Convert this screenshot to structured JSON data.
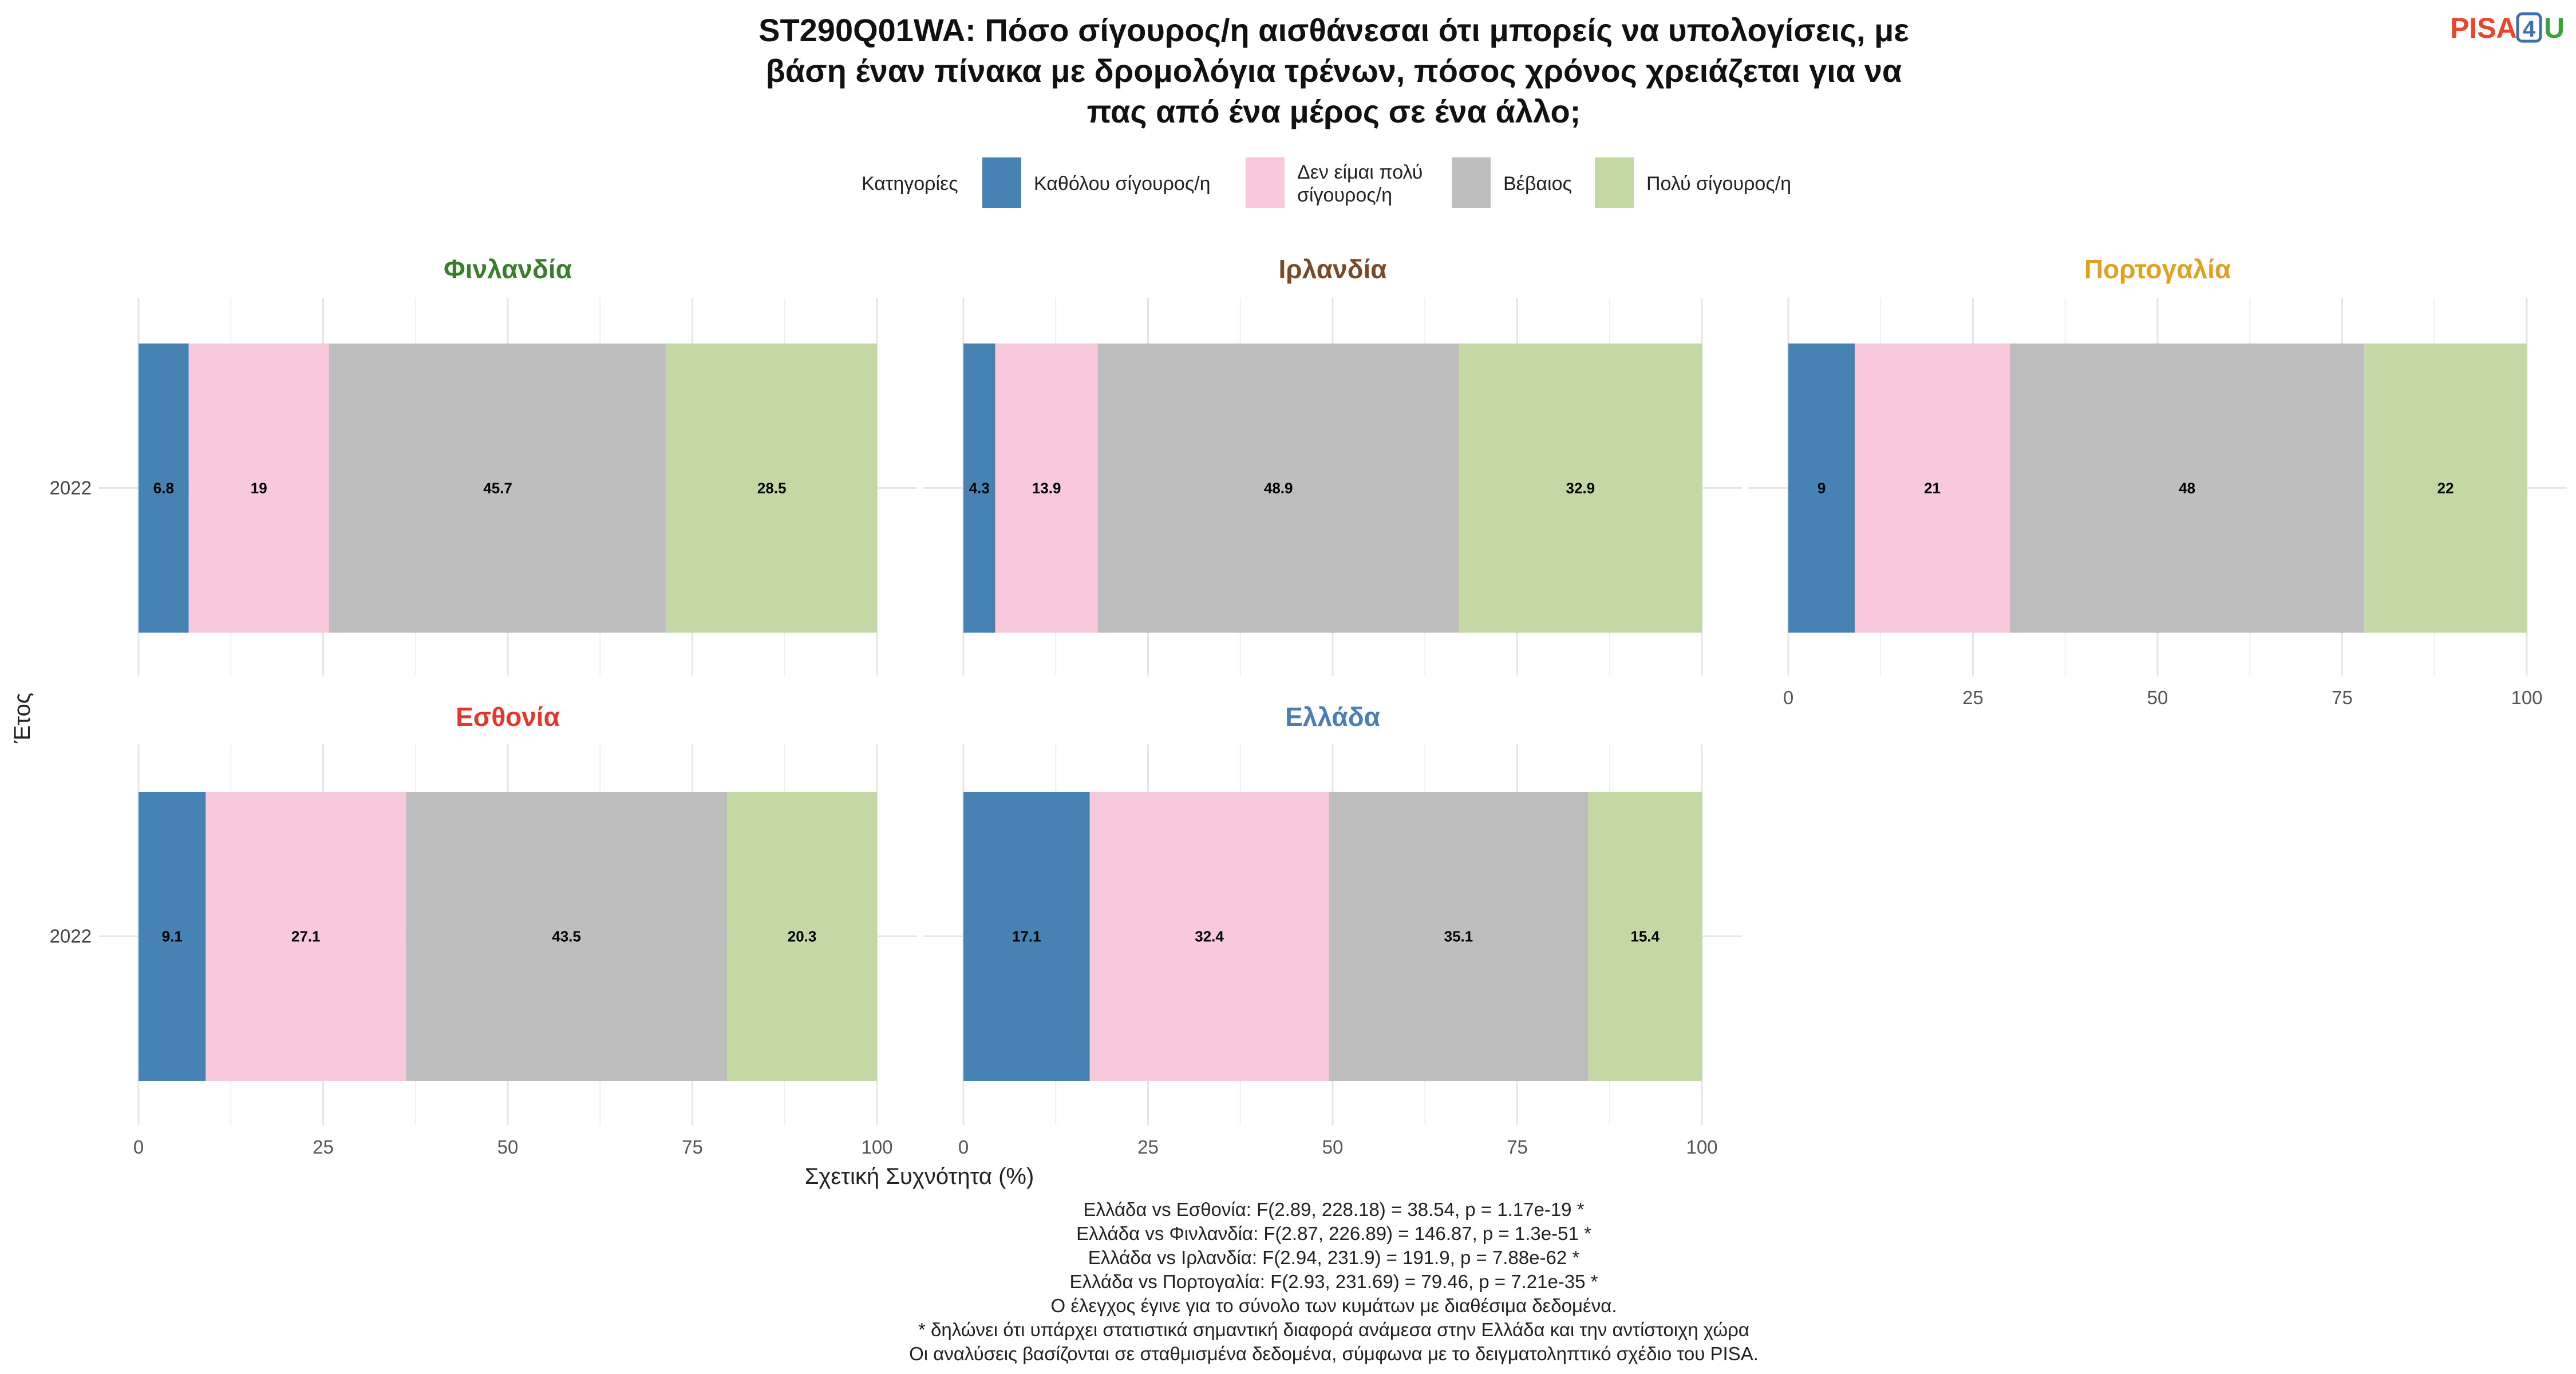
{
  "title_lines": [
    "ST290Q01WA: Πόσο σίγουρος/η αισθάνεσαι ότι μπορείς να υπολογίσεις, με",
    "βάση έναν πίνακα με δρομολόγια τρένων, πόσος χρόνος χρειάζεται για να",
    "πας από ένα μέρος σε ένα άλλο;"
  ],
  "logo": {
    "part1": "PISA",
    "part2": "4",
    "part3": "U",
    "colors": {
      "part1": "#e8452c",
      "part2": "#3d6fb0",
      "part3": "#3ba13b"
    }
  },
  "legend": {
    "title": "Κατηγορίες",
    "items": [
      {
        "lines": [
          "Καθόλου σίγουρος/η"
        ],
        "color": "#4682B4"
      },
      {
        "lines": [
          "Δεν είμαι πολύ",
          "σίγουρος/η"
        ],
        "color": "#F8C8DC"
      },
      {
        "lines": [
          "Βέβαιος"
        ],
        "color": "#BEBEBE"
      },
      {
        "lines": [
          "Πολύ σίγουρος/η"
        ],
        "color": "#C3D8A5"
      }
    ]
  },
  "chart_data": {
    "type": "bar",
    "orientation": "horizontal-stacked",
    "xlabel": "Σχετική Συχνότητα (%)",
    "ylabel": "Έτος",
    "xlim": [
      0,
      100
    ],
    "xticks": [
      0,
      25,
      50,
      75,
      100
    ],
    "categories": [
      "Καθόλου σίγουρος/η",
      "Δεν είμαι πολύ σίγουρος/η",
      "Βέβαιος",
      "Πολύ σίγουρος/η"
    ],
    "panels": [
      {
        "country": "Φινλανδία",
        "color": "#3a7d2c",
        "year": "2022",
        "values": [
          6.8,
          19,
          45.7,
          28.5
        ],
        "labels": [
          "6.8",
          "19",
          "45.7",
          "28.5"
        ],
        "show_x_axis": false
      },
      {
        "country": "Ιρλανδία",
        "color": "#7a4a26",
        "year": "2022",
        "values": [
          4.3,
          13.9,
          48.9,
          32.9
        ],
        "labels": [
          "4.3",
          "13.9",
          "48.9",
          "32.9"
        ],
        "show_x_axis": false
      },
      {
        "country": "Πορτογαλία",
        "color": "#e0a020",
        "year": "2022",
        "values": [
          9,
          21,
          48,
          22
        ],
        "labels": [
          "9",
          "21",
          "48",
          "22"
        ],
        "show_x_axis": true
      },
      {
        "country": "Εσθονία",
        "color": "#e0392b",
        "year": "2022",
        "values": [
          9.1,
          27.1,
          43.5,
          20.3
        ],
        "labels": [
          "9.1",
          "27.1",
          "43.5",
          "20.3"
        ],
        "show_x_axis": true
      },
      {
        "country": "Ελλάδα",
        "color": "#4a7fb5",
        "year": "2022",
        "values": [
          17.1,
          32.4,
          35.1,
          15.4
        ],
        "labels": [
          "17.1",
          "32.4",
          "35.1",
          "15.4"
        ],
        "show_x_axis": true
      }
    ]
  },
  "notes": [
    "Ελλάδα vs Εσθονία: F(2.89, 228.18) = 38.54, p = 1.17e-19 *",
    "Ελλάδα vs Φινλανδία: F(2.87, 226.89) = 146.87, p = 1.3e-51 *",
    "Ελλάδα vs Ιρλανδία: F(2.94, 231.9) = 191.9, p = 7.88e-62 *",
    "Ελλάδα vs Πορτογαλία: F(2.93, 231.69) = 79.46, p = 7.21e-35 *",
    "Ο έλεγχος έγινε για το σύνολο των κυμάτων με διαθέσιμα δεδομένα.",
    "* δηλώνει ότι υπάρχει στατιστικά σημαντική διαφορά ανάμεσα στην Ελλάδα και την αντίστοιχη χώρα",
    "Οι αναλύσεις βασίζονται σε σταθμισμένα δεδομένα, σύμφωνα με το δειγματοληπτικό σχέδιο του PISA."
  ]
}
